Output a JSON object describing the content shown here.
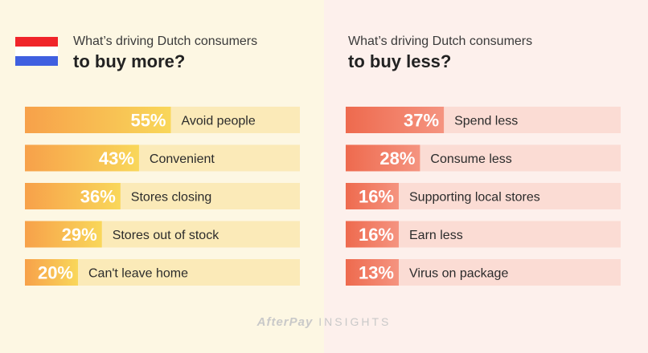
{
  "header_left": {
    "line1": "What’s driving Dutch consumers",
    "line2": "to buy more?"
  },
  "header_right": {
    "line1": "What’s driving Dutch consumers",
    "line2": "to buy less?"
  },
  "flag": {
    "colors": [
      "#f0242a",
      "#ffffff",
      "#3f5fe0"
    ]
  },
  "brand": {
    "logo": "AfterPay",
    "suffix": "INSIGHTS"
  },
  "colors": {
    "more_bar_start": "#f7a14a",
    "more_bar_end": "#f9d75a",
    "more_track": "#fbeab8",
    "less_bar_start": "#ee6a4e",
    "less_bar_end": "#f59480",
    "less_track": "#fbdcd4"
  },
  "chart_data": [
    {
      "type": "bar",
      "title": "",
      "categories": [
        "Avoid people",
        "Convenient",
        "Stores closing",
        "Stores out of stock",
        "Can't leave home"
      ],
      "values": [
        55,
        43,
        36,
        29,
        20
      ],
      "value_labels": [
        "55%",
        "43%",
        "36%",
        "29%",
        "20%"
      ],
      "ylim": [
        0,
        100
      ]
    },
    {
      "type": "bar",
      "title": "",
      "categories": [
        "Spend less",
        "Consume less",
        "Supporting local stores",
        "Earn less",
        "Virus on package"
      ],
      "values": [
        37,
        28,
        16,
        16,
        13
      ],
      "value_labels": [
        "37%",
        "28%",
        "16%",
        "16%",
        "13%"
      ],
      "ylim": [
        0,
        100
      ]
    }
  ]
}
